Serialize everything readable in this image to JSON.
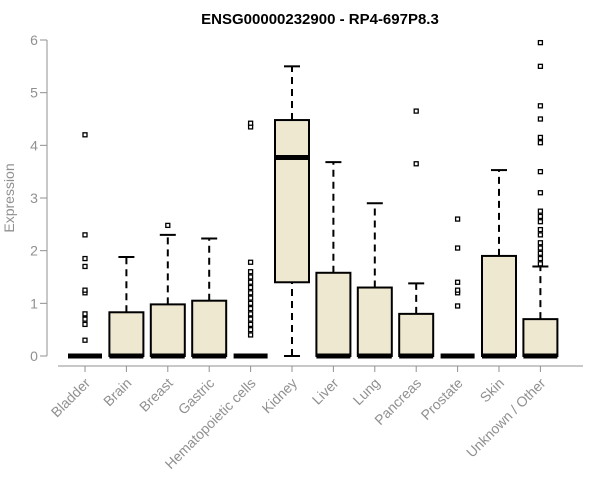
{
  "chart_data": {
    "type": "boxplot",
    "title": "ENSG00000232900 - RP4-697P8.3",
    "ylabel": "Expression",
    "xlabel": "",
    "ylim": [
      0,
      6
    ],
    "yticks": [
      0,
      1,
      2,
      3,
      4,
      5,
      6
    ],
    "grid": false,
    "colors": {
      "box_fill": "#EEE8D0",
      "box_stroke": "#000000",
      "axis": "#909090"
    },
    "categories": [
      "Bladder",
      "Brain",
      "Breast",
      "Gastric",
      "Hematopoietic cells",
      "Kidney",
      "Liver",
      "Lung",
      "Pancreas",
      "Prostate",
      "Skin",
      "Unknown / Other"
    ],
    "boxes": [
      {
        "q1": 0,
        "median": 0,
        "q3": 0,
        "whisker_low": 0,
        "whisker_high": 0,
        "outliers": [
          0.3,
          0.6,
          0.7,
          0.8,
          1.2,
          1.25,
          1.7,
          1.85,
          2.3,
          4.2
        ]
      },
      {
        "q1": 0,
        "median": 0,
        "q3": 0.83,
        "whisker_low": 0,
        "whisker_high": 1.88,
        "outliers": []
      },
      {
        "q1": 0,
        "median": 0,
        "q3": 0.98,
        "whisker_low": 0,
        "whisker_high": 2.3,
        "outliers": [
          2.48
        ]
      },
      {
        "q1": 0,
        "median": 0,
        "q3": 1.05,
        "whisker_low": 0,
        "whisker_high": 2.23,
        "outliers": []
      },
      {
        "q1": 0,
        "median": 0,
        "q3": 0,
        "whisker_low": 0,
        "whisker_high": 0,
        "outliers": [
          0.4,
          0.5,
          0.6,
          0.7,
          0.8,
          0.9,
          1.0,
          1.1,
          1.2,
          1.3,
          1.4,
          1.5,
          1.6,
          1.78,
          4.35,
          4.42
        ]
      },
      {
        "q1": 1.4,
        "median": 3.77,
        "q3": 4.48,
        "whisker_low": 0,
        "whisker_high": 5.5,
        "outliers": []
      },
      {
        "q1": 0,
        "median": 0,
        "q3": 1.58,
        "whisker_low": 0,
        "whisker_high": 3.68,
        "outliers": []
      },
      {
        "q1": 0,
        "median": 0,
        "q3": 1.3,
        "whisker_low": 0,
        "whisker_high": 2.9,
        "outliers": []
      },
      {
        "q1": 0,
        "median": 0,
        "q3": 0.8,
        "whisker_low": 0,
        "whisker_high": 1.38,
        "outliers": [
          3.65,
          4.65
        ]
      },
      {
        "q1": 0,
        "median": 0,
        "q3": 0,
        "whisker_low": 0,
        "whisker_high": 0,
        "outliers": [
          0.95,
          1.2,
          1.25,
          1.4,
          2.05,
          2.6
        ]
      },
      {
        "q1": 0,
        "median": 0,
        "q3": 1.9,
        "whisker_low": 0,
        "whisker_high": 3.53,
        "outliers": []
      },
      {
        "q1": 0,
        "median": 0,
        "q3": 0.7,
        "whisker_low": 0,
        "whisker_high": 1.7,
        "outliers": [
          1.75,
          1.85,
          1.95,
          2.05,
          2.15,
          2.3,
          2.4,
          2.55,
          2.65,
          2.75,
          3.1,
          3.5,
          4.05,
          4.15,
          4.5,
          4.75,
          5.5,
          5.95
        ]
      }
    ]
  }
}
